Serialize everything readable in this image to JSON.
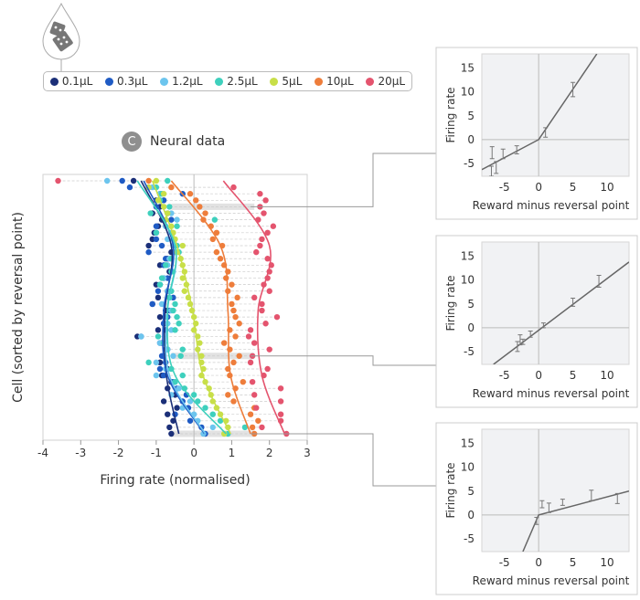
{
  "legend": {
    "items": [
      {
        "label": "0.1µL",
        "color": "#1b2f78"
      },
      {
        "label": "0.3µL",
        "color": "#1f5bc4"
      },
      {
        "label": "1.2µL",
        "color": "#6cc5ee"
      },
      {
        "label": "2.5µL",
        "color": "#3ed0bd"
      },
      {
        "label": "5µL",
        "color": "#c8df48"
      },
      {
        "label": "10µL",
        "color": "#ee7d3b"
      },
      {
        "label": "20µL",
        "color": "#e4546e"
      }
    ]
  },
  "section": {
    "badge": "C",
    "title": "Neural data"
  },
  "icons": {
    "dropper": "dropper-with-dice-icon"
  },
  "chart_data": [
    {
      "type": "scatter",
      "title": "Neural data",
      "xlabel": "Firing rate (normalised)",
      "ylabel": "Cell (sorted by reversal point)",
      "xlim": [
        -4,
        3
      ],
      "xticks": [
        "-4",
        "-3",
        "-2",
        "-1",
        "0",
        "1",
        "2",
        "3"
      ],
      "n_cells": 40,
      "highlighted_cells": [
        4,
        27,
        39
      ],
      "fit_rows": [
        0,
        10,
        20,
        30,
        39
      ],
      "series": [
        {
          "name": "0.1µL",
          "fit": [
            -1.4,
            -0.6,
            -0.77,
            -0.73,
            -0.4
          ],
          "values": [
            -1.6,
            -1.2,
            -0.9,
            -1.0,
            -0.9,
            -1.1,
            -0.85,
            -0.95,
            -1.05,
            -1.1,
            -1.2,
            -0.6,
            -0.7,
            -0.9,
            -0.65,
            -0.8,
            -1.0,
            -0.7,
            -0.95,
            -1.1,
            -0.75,
            -0.9,
            -0.8,
            -0.95,
            -1.5,
            -0.85,
            -0.75,
            -0.8,
            -0.9,
            -0.7,
            -0.85,
            -0.6,
            -0.7,
            -0.5,
            -0.8,
            -0.45,
            -0.7,
            -0.55,
            -0.65,
            -0.6
          ]
        },
        {
          "name": "0.3µL",
          "fit": [
            -1.33,
            -0.55,
            -0.8,
            -0.7,
            0.28
          ],
          "values": [
            -1.9,
            -1.7,
            -0.3,
            -0.8,
            -1.0,
            -0.7,
            -0.6,
            -1.0,
            -1.0,
            -1.0,
            -0.85,
            -1.2,
            -0.75,
            -0.8,
            -0.6,
            -0.7,
            -0.9,
            -0.95,
            -0.55,
            -1.1,
            -0.65,
            -0.7,
            -0.8,
            -0.75,
            -1.4,
            -0.9,
            -0.7,
            -0.85,
            -0.75,
            -0.9,
            -0.8,
            -0.55,
            -0.45,
            -0.2,
            -0.3,
            -0.15,
            -0.5,
            -0.1,
            0.2,
            0.3
          ]
        },
        {
          "name": "1.2µL",
          "fit": [
            -1.5,
            -0.5,
            -0.7,
            -0.65,
            0.3
          ],
          "values": [
            -2.3,
            -1.1,
            -0.9,
            -0.95,
            -0.8,
            -0.6,
            -0.45,
            -0.75,
            -0.6,
            -0.7,
            -0.55,
            -0.5,
            -0.65,
            -0.7,
            -0.55,
            -0.8,
            -0.9,
            -0.7,
            -0.65,
            -0.85,
            -0.6,
            -0.75,
            -0.7,
            -0.6,
            -1.4,
            -0.9,
            -0.7,
            -0.55,
            -1.0,
            -0.75,
            -1.0,
            -0.5,
            -0.4,
            -0.6,
            -0.1,
            -0.3,
            0.0,
            0.1,
            0.5,
            0.25
          ]
        },
        {
          "name": "2.5µL",
          "fit": [
            -1.5,
            -0.5,
            -0.7,
            -0.5,
            0.85
          ],
          "values": [
            -0.7,
            -1.0,
            -0.85,
            -0.9,
            -0.65,
            -1.15,
            0.55,
            -0.45,
            -1.0,
            -0.55,
            -0.45,
            -0.4,
            -0.6,
            -0.75,
            -0.6,
            -0.85,
            -0.9,
            -0.6,
            -0.65,
            -0.5,
            -0.55,
            -0.45,
            -0.4,
            -0.5,
            -0.95,
            -0.8,
            -0.3,
            -0.35,
            -1.2,
            -0.6,
            -0.3,
            -0.5,
            -0.25,
            0.0,
            0.1,
            0.3,
            0.5,
            0.7,
            1.35,
            0.9
          ]
        },
        {
          "name": "5µL",
          "fit": [
            -1.1,
            -0.45,
            -0.04,
            0.24,
            0.97
          ],
          "values": [
            -1.0,
            -1.2,
            -0.8,
            -0.95,
            -0.8,
            -0.7,
            -0.75,
            -0.6,
            -0.55,
            -0.5,
            -0.3,
            -0.45,
            -0.35,
            -0.3,
            -0.25,
            -0.3,
            -0.2,
            -0.25,
            -0.15,
            -0.1,
            -0.05,
            0.0,
            0.05,
            0.0,
            0.1,
            0.15,
            0.1,
            0.2,
            0.2,
            0.25,
            0.2,
            0.3,
            0.4,
            0.45,
            0.5,
            0.6,
            0.7,
            0.85,
            0.9,
            0.8
          ]
        },
        {
          "name": "10µL",
          "fit": [
            -0.6,
            0.7,
            0.9,
            0.97,
            1.5
          ],
          "values": [
            -1.2,
            -0.6,
            -0.1,
            0.05,
            0.15,
            0.3,
            0.25,
            0.45,
            0.6,
            0.5,
            0.75,
            0.6,
            0.7,
            0.8,
            0.9,
            0.85,
            1.0,
            0.9,
            1.15,
            1.0,
            1.05,
            1.1,
            1.2,
            0.95,
            1.1,
            0.8,
            0.95,
            1.2,
            1.05,
            0.9,
            0.95,
            1.3,
            1.1,
            0.9,
            1.05,
            1.6,
            1.5,
            1.7,
            1.55,
            1.6
          ]
        },
        {
          "name": "20µL",
          "fit": [
            0.78,
            2.0,
            1.7,
            1.8,
            2.4
          ],
          "values": [
            -3.6,
            1.05,
            1.75,
            1.9,
            1.75,
            1.85,
            1.7,
            2.1,
            1.95,
            1.8,
            1.75,
            1.65,
            1.95,
            2.05,
            2.0,
            1.95,
            1.85,
            2.0,
            1.6,
            1.8,
            1.8,
            2.2,
            1.9,
            1.5,
            1.45,
            1.6,
            2.0,
            1.55,
            1.5,
            1.95,
            1.85,
            1.55,
            2.3,
            1.6,
            2.3,
            1.65,
            2.3,
            2.3,
            1.8,
            2.45
          ]
        }
      ]
    },
    {
      "type": "line",
      "xlabel": "Reward minus reversal point",
      "ylabel": "Firing rate",
      "xlim": [
        -8.3,
        13.2
      ],
      "ylim": [
        -7.7,
        18
      ],
      "xticks": [
        "-5",
        "0",
        "5",
        "10"
      ],
      "yticks": [
        "-5",
        "0",
        "5",
        "10",
        "15"
      ],
      "fit": [
        [
          -8.3,
          -6.3
        ],
        [
          0,
          0
        ],
        [
          8.5,
          18
        ]
      ],
      "errorbars": [
        [
          -6.8,
          -4,
          -1.5
        ],
        [
          -6.9,
          -7.7,
          -5.6
        ],
        [
          -6.2,
          -7.1,
          -4.6
        ],
        [
          -5.2,
          -4,
          -2
        ],
        [
          -3.2,
          -3,
          -1.3
        ],
        [
          1,
          0.5,
          2.5
        ],
        [
          5,
          9,
          12
        ]
      ]
    },
    {
      "type": "line",
      "xlabel": "Reward minus reversal point",
      "ylabel": "Firing rate",
      "xlim": [
        -8.3,
        13.2
      ],
      "ylim": [
        -7.7,
        18
      ],
      "xticks": [
        "-5",
        "0",
        "5",
        "10"
      ],
      "yticks": [
        "-5",
        "0",
        "5",
        "10",
        "15"
      ],
      "fit": [
        [
          -6.6,
          -7.7
        ],
        [
          13.2,
          13.8
        ]
      ],
      "errorbars": [
        [
          -3.1,
          -5,
          -2.9
        ],
        [
          -2.7,
          -3.6,
          -1.5
        ],
        [
          -2.3,
          -3.5,
          -2.4
        ],
        [
          -1.2,
          -2,
          -0.7
        ],
        [
          0.7,
          0,
          1
        ],
        [
          5,
          4.5,
          6.2
        ],
        [
          8.8,
          8.5,
          11
        ]
      ]
    },
    {
      "type": "line",
      "xlabel": "Reward minus reversal point",
      "ylabel": "Firing rate",
      "xlim": [
        -8.3,
        13.2
      ],
      "ylim": [
        -7.7,
        18
      ],
      "xticks": [
        "-5",
        "0",
        "5",
        "10"
      ],
      "yticks": [
        "-5",
        "0",
        "5",
        "10",
        "15"
      ],
      "fit": [
        [
          -2.3,
          -7.7
        ],
        [
          0,
          0
        ],
        [
          13.2,
          5
        ]
      ],
      "errorbars": [
        [
          -0.3,
          -2,
          -0.5
        ],
        [
          0.5,
          1.5,
          3
        ],
        [
          1.5,
          0.5,
          2.5
        ],
        [
          3.5,
          2,
          3.3
        ],
        [
          7.7,
          3,
          5.2
        ],
        [
          11.5,
          2.4,
          4.5
        ]
      ]
    }
  ]
}
